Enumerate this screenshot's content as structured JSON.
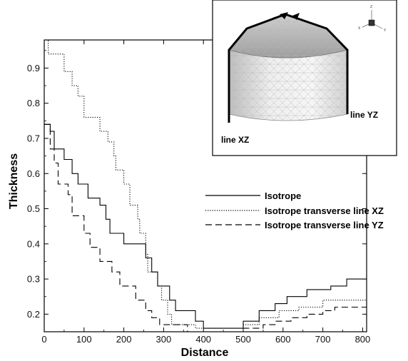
{
  "chart_data": {
    "type": "line",
    "xlabel": "Distance",
    "ylabel": "Thickness",
    "xlim": [
      0,
      810
    ],
    "ylim": [
      0.15,
      0.98
    ],
    "x_ticks": [
      0,
      100,
      200,
      300,
      400,
      500,
      600,
      700,
      800
    ],
    "y_ticks": [
      0.2,
      0.3,
      0.4,
      0.5,
      0.6,
      0.7,
      0.8,
      0.9
    ],
    "grid": false,
    "legend_position": "right-middle",
    "series": [
      {
        "name": "Isotrope",
        "style": "solid",
        "points": [
          [
            0,
            0.74
          ],
          [
            15,
            0.74
          ],
          [
            15,
            0.72
          ],
          [
            25,
            0.72
          ],
          [
            25,
            0.67
          ],
          [
            50,
            0.67
          ],
          [
            50,
            0.64
          ],
          [
            70,
            0.64
          ],
          [
            70,
            0.6
          ],
          [
            85,
            0.6
          ],
          [
            85,
            0.57
          ],
          [
            110,
            0.57
          ],
          [
            110,
            0.53
          ],
          [
            140,
            0.53
          ],
          [
            140,
            0.51
          ],
          [
            155,
            0.51
          ],
          [
            155,
            0.47
          ],
          [
            165,
            0.47
          ],
          [
            165,
            0.43
          ],
          [
            200,
            0.43
          ],
          [
            200,
            0.4
          ],
          [
            255,
            0.4
          ],
          [
            255,
            0.36
          ],
          [
            270,
            0.36
          ],
          [
            270,
            0.32
          ],
          [
            285,
            0.32
          ],
          [
            285,
            0.28
          ],
          [
            315,
            0.28
          ],
          [
            315,
            0.24
          ],
          [
            330,
            0.24
          ],
          [
            330,
            0.21
          ],
          [
            380,
            0.21
          ],
          [
            380,
            0.18
          ],
          [
            400,
            0.18
          ],
          [
            400,
            0.16
          ],
          [
            500,
            0.16
          ],
          [
            500,
            0.18
          ],
          [
            540,
            0.18
          ],
          [
            540,
            0.21
          ],
          [
            580,
            0.21
          ],
          [
            580,
            0.23
          ],
          [
            610,
            0.23
          ],
          [
            610,
            0.25
          ],
          [
            660,
            0.25
          ],
          [
            660,
            0.27
          ],
          [
            720,
            0.27
          ],
          [
            720,
            0.28
          ],
          [
            760,
            0.28
          ],
          [
            760,
            0.3
          ],
          [
            810,
            0.3
          ]
        ]
      },
      {
        "name": "Isotrope transverse line XZ",
        "style": "dotted",
        "points": [
          [
            0,
            0.98
          ],
          [
            10,
            0.98
          ],
          [
            10,
            0.94
          ],
          [
            50,
            0.94
          ],
          [
            50,
            0.89
          ],
          [
            70,
            0.89
          ],
          [
            70,
            0.85
          ],
          [
            85,
            0.85
          ],
          [
            85,
            0.82
          ],
          [
            100,
            0.82
          ],
          [
            100,
            0.76
          ],
          [
            140,
            0.76
          ],
          [
            140,
            0.72
          ],
          [
            160,
            0.72
          ],
          [
            160,
            0.69
          ],
          [
            175,
            0.69
          ],
          [
            175,
            0.65
          ],
          [
            180,
            0.65
          ],
          [
            180,
            0.61
          ],
          [
            200,
            0.61
          ],
          [
            200,
            0.57
          ],
          [
            215,
            0.57
          ],
          [
            215,
            0.51
          ],
          [
            235,
            0.51
          ],
          [
            235,
            0.47
          ],
          [
            240,
            0.47
          ],
          [
            240,
            0.43
          ],
          [
            255,
            0.43
          ],
          [
            255,
            0.37
          ],
          [
            260,
            0.37
          ],
          [
            260,
            0.32
          ],
          [
            285,
            0.32
          ],
          [
            285,
            0.28
          ],
          [
            295,
            0.28
          ],
          [
            295,
            0.24
          ],
          [
            310,
            0.24
          ],
          [
            310,
            0.2
          ],
          [
            320,
            0.2
          ],
          [
            320,
            0.17
          ],
          [
            380,
            0.17
          ],
          [
            380,
            0.16
          ],
          [
            500,
            0.16
          ],
          [
            500,
            0.17
          ],
          [
            540,
            0.17
          ],
          [
            540,
            0.19
          ],
          [
            590,
            0.19
          ],
          [
            590,
            0.21
          ],
          [
            640,
            0.21
          ],
          [
            640,
            0.22
          ],
          [
            700,
            0.22
          ],
          [
            700,
            0.24
          ],
          [
            810,
            0.24
          ]
        ]
      },
      {
        "name": "Isotrope transverse line YZ",
        "style": "dashed",
        "points": [
          [
            0,
            0.74
          ],
          [
            15,
            0.74
          ],
          [
            15,
            0.67
          ],
          [
            25,
            0.67
          ],
          [
            25,
            0.63
          ],
          [
            35,
            0.63
          ],
          [
            35,
            0.57
          ],
          [
            60,
            0.57
          ],
          [
            60,
            0.54
          ],
          [
            70,
            0.54
          ],
          [
            70,
            0.48
          ],
          [
            100,
            0.48
          ],
          [
            100,
            0.43
          ],
          [
            115,
            0.43
          ],
          [
            115,
            0.39
          ],
          [
            140,
            0.39
          ],
          [
            140,
            0.35
          ],
          [
            170,
            0.35
          ],
          [
            170,
            0.32
          ],
          [
            190,
            0.32
          ],
          [
            190,
            0.28
          ],
          [
            230,
            0.28
          ],
          [
            230,
            0.24
          ],
          [
            255,
            0.24
          ],
          [
            255,
            0.21
          ],
          [
            270,
            0.21
          ],
          [
            270,
            0.19
          ],
          [
            290,
            0.19
          ],
          [
            290,
            0.17
          ],
          [
            360,
            0.17
          ],
          [
            360,
            0.15
          ],
          [
            500,
            0.15
          ],
          [
            500,
            0.16
          ],
          [
            550,
            0.16
          ],
          [
            550,
            0.17
          ],
          [
            580,
            0.17
          ],
          [
            580,
            0.18
          ],
          [
            620,
            0.18
          ],
          [
            620,
            0.19
          ],
          [
            660,
            0.19
          ],
          [
            660,
            0.2
          ],
          [
            700,
            0.2
          ],
          [
            700,
            0.21
          ],
          [
            730,
            0.21
          ],
          [
            730,
            0.22
          ],
          [
            810,
            0.22
          ]
        ]
      }
    ],
    "inset": {
      "labels": [
        "line XZ",
        "line YZ"
      ],
      "axis_triad": [
        "Z",
        "X",
        "Y"
      ]
    }
  }
}
